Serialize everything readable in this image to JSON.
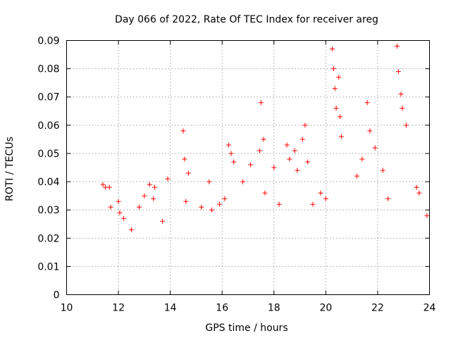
{
  "chart_data": {
    "type": "scatter",
    "title": "Day 066 of 2022, Rate Of TEC Index for receiver areg",
    "xlabel": "GPS time / hours",
    "ylabel": "ROTI / TECUs",
    "xlim": [
      10,
      24
    ],
    "ylim": [
      0,
      0.09
    ],
    "xticks": [
      10,
      12,
      14,
      16,
      18,
      20,
      22,
      24
    ],
    "xtick_labels": [
      "10",
      "12",
      "14",
      "16",
      "18",
      "20",
      "22",
      "24"
    ],
    "yticks": [
      0,
      0.01,
      0.02,
      0.03,
      0.04,
      0.05,
      0.06,
      0.07,
      0.08,
      0.09
    ],
    "ytick_labels": [
      "0",
      "0.01",
      "0.02",
      "0.03",
      "0.04",
      "0.05",
      "0.06",
      "0.07",
      "0.08",
      "0.09"
    ],
    "grid": true,
    "marker": "+",
    "color": "#ff0000",
    "series": [
      {
        "name": "ROTI",
        "x": [
          11.4,
          11.5,
          11.65,
          11.7,
          12.0,
          12.05,
          12.2,
          12.5,
          12.8,
          13.0,
          13.2,
          13.35,
          13.4,
          13.7,
          13.9,
          14.5,
          14.55,
          14.6,
          14.7,
          15.2,
          15.5,
          15.6,
          15.9,
          16.1,
          16.25,
          16.35,
          16.45,
          16.8,
          17.1,
          17.45,
          17.5,
          17.6,
          17.65,
          18.0,
          18.2,
          18.5,
          18.6,
          18.8,
          18.9,
          19.1,
          19.2,
          19.3,
          19.5,
          19.8,
          20.0,
          20.25,
          20.3,
          20.35,
          20.4,
          20.5,
          20.55,
          20.6,
          21.2,
          21.4,
          21.6,
          21.7,
          21.9,
          22.2,
          22.4,
          22.75,
          22.8,
          22.9,
          22.95,
          23.1,
          23.5,
          23.6,
          23.9
        ],
        "y": [
          0.039,
          0.038,
          0.038,
          0.031,
          0.033,
          0.029,
          0.027,
          0.023,
          0.031,
          0.035,
          0.039,
          0.034,
          0.038,
          0.026,
          0.041,
          0.058,
          0.048,
          0.033,
          0.043,
          0.031,
          0.04,
          0.03,
          0.032,
          0.034,
          0.053,
          0.05,
          0.047,
          0.04,
          0.046,
          0.051,
          0.068,
          0.055,
          0.036,
          0.045,
          0.032,
          0.053,
          0.048,
          0.051,
          0.044,
          0.055,
          0.06,
          0.047,
          0.032,
          0.036,
          0.034,
          0.087,
          0.08,
          0.073,
          0.066,
          0.077,
          0.063,
          0.056,
          0.042,
          0.048,
          0.068,
          0.058,
          0.052,
          0.044,
          0.034,
          0.088,
          0.079,
          0.071,
          0.066,
          0.06,
          0.038,
          0.036,
          0.028
        ]
      }
    ]
  }
}
